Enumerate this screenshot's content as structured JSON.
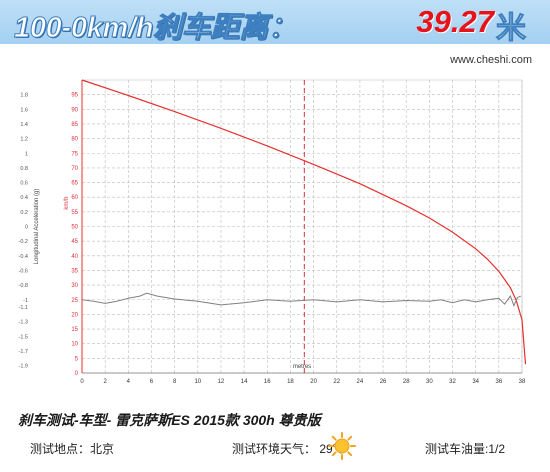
{
  "header": {
    "title": "100-0km/h刹车距离：",
    "value": "39.27",
    "unit": "米"
  },
  "watermark": "www.cheshi.com",
  "caption": "刹车测试-车型- 雷克萨斯ES  2015款 300h 尊贵版",
  "info": {
    "location": "测试地点：北京",
    "weather": "测试环境天气： 29℃",
    "weather_icon": "sun-icon",
    "fuel": "测试车油量:1/2"
  },
  "colors": {
    "speed_curve": "#e8302e",
    "accel_curve": "#808080",
    "marker_line": "#d9303a",
    "banner": "#a9d3f2"
  },
  "chart_data": {
    "type": "line",
    "xlabel": "metres",
    "xlim": [
      0,
      38
    ],
    "x_ticks": [
      0,
      2,
      4,
      6,
      8,
      10,
      12,
      14,
      16,
      18,
      20,
      22,
      24,
      26,
      28,
      30,
      32,
      34,
      36,
      38
    ],
    "y_left": {
      "label": "km/h",
      "lim": [
        0,
        100
      ],
      "ticks": [
        0,
        5,
        10,
        15,
        20,
        25,
        30,
        35,
        40,
        45,
        50,
        55,
        60,
        65,
        70,
        75,
        80,
        85,
        90,
        95
      ]
    },
    "y_right": {
      "label": "Longitudinal Acceleration (g)",
      "lim": [
        -2.0,
        2.0
      ],
      "ticks": [
        "-1.9",
        "-1.7",
        "-1.5",
        "-1.3",
        "-1.1",
        "-1",
        "-0.8",
        "-0.6",
        "-0.4",
        "-0.2",
        "0",
        "0.2",
        "0.4",
        "0.6",
        "0.8",
        "1",
        "1.2",
        "1.4",
        "1.6",
        "1.8"
      ],
      "tick_values": [
        -1.9,
        -1.7,
        -1.5,
        -1.3,
        -1.1,
        -1.0,
        -0.8,
        -0.6,
        -0.4,
        -0.2,
        0,
        0.2,
        0.4,
        0.6,
        0.8,
        1.0,
        1.2,
        1.4,
        1.6,
        1.8
      ]
    },
    "marker_x": 19.2,
    "grid": true,
    "series": [
      {
        "axis": "left",
        "x": [
          0,
          4,
          8,
          12,
          16,
          20,
          24,
          28,
          30,
          32,
          34,
          35,
          36,
          37,
          37.5,
          38,
          38.3
        ],
        "values": [
          100,
          94.7,
          89.2,
          83.5,
          77.5,
          71.2,
          64.6,
          57.1,
          52.9,
          48.1,
          42.4,
          38.9,
          34.7,
          29.1,
          24.8,
          18.2,
          3
        ]
      },
      {
        "axis": "right",
        "x": [
          0,
          1,
          2,
          3,
          4,
          5,
          5.6,
          6.5,
          8,
          10,
          12,
          14,
          16,
          18,
          20,
          22,
          24,
          26,
          28,
          30,
          31,
          32,
          33,
          34,
          35,
          36,
          36.5,
          37,
          37.3,
          37.6,
          37.9
        ],
        "values": [
          -1.0,
          -1.02,
          -1.05,
          -1.02,
          -0.98,
          -0.95,
          -0.91,
          -0.95,
          -0.99,
          -1.02,
          -1.07,
          -1.04,
          -1.0,
          -1.02,
          -1.0,
          -1.03,
          -1.0,
          -1.03,
          -1.01,
          -1.02,
          -1.0,
          -1.04,
          -1.0,
          -1.03,
          -1.0,
          -0.98,
          -1.06,
          -0.95,
          -1.08,
          -0.97,
          -0.95
        ]
      }
    ]
  }
}
